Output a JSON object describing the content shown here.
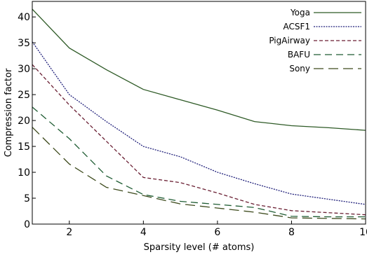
{
  "chart_data": {
    "type": "line",
    "title": "",
    "xlabel": "Sparsity level (# atoms)",
    "ylabel": "Compression factor",
    "xlim": [
      1,
      10
    ],
    "ylim": [
      0,
      43
    ],
    "xticks": [
      2,
      4,
      6,
      8,
      10
    ],
    "yticks": [
      0,
      5,
      10,
      15,
      20,
      25,
      30,
      35,
      40
    ],
    "grid": false,
    "legend_position": "top-right",
    "x": [
      1,
      2,
      3,
      4,
      5,
      6,
      7,
      8,
      9,
      10
    ],
    "series": [
      {
        "name": "Yoga",
        "color": "#2e5a26",
        "dash": "solid",
        "values": [
          41.5,
          34,
          29.8,
          26,
          24,
          22,
          19.8,
          19,
          18.6,
          18.1
        ]
      },
      {
        "name": "ACSF1",
        "color": "#1f1f7a",
        "dash": "dotted",
        "values": [
          35.2,
          25,
          19.8,
          15,
          13,
          10,
          7.8,
          5.8,
          4.8,
          3.8
        ]
      },
      {
        "name": "PigAirway",
        "color": "#6a1f33",
        "dash": "dashed",
        "values": [
          30.8,
          23,
          16,
          9,
          8,
          6,
          3.8,
          2.6,
          2.2,
          1.8
        ]
      },
      {
        "name": "BAFU",
        "color": "#1f5c33",
        "dash": "longdash",
        "values": [
          22.6,
          16.5,
          9.3,
          5.7,
          4.4,
          3.8,
          3.2,
          1.5,
          1.4,
          1.4
        ]
      },
      {
        "name": "Sony",
        "color": "#3d4a1c",
        "dash": "longdash-sparse",
        "values": [
          18.7,
          11.6,
          7.1,
          5.5,
          3.9,
          3.1,
          2.3,
          1.2,
          1.1,
          1.0
        ]
      }
    ]
  }
}
